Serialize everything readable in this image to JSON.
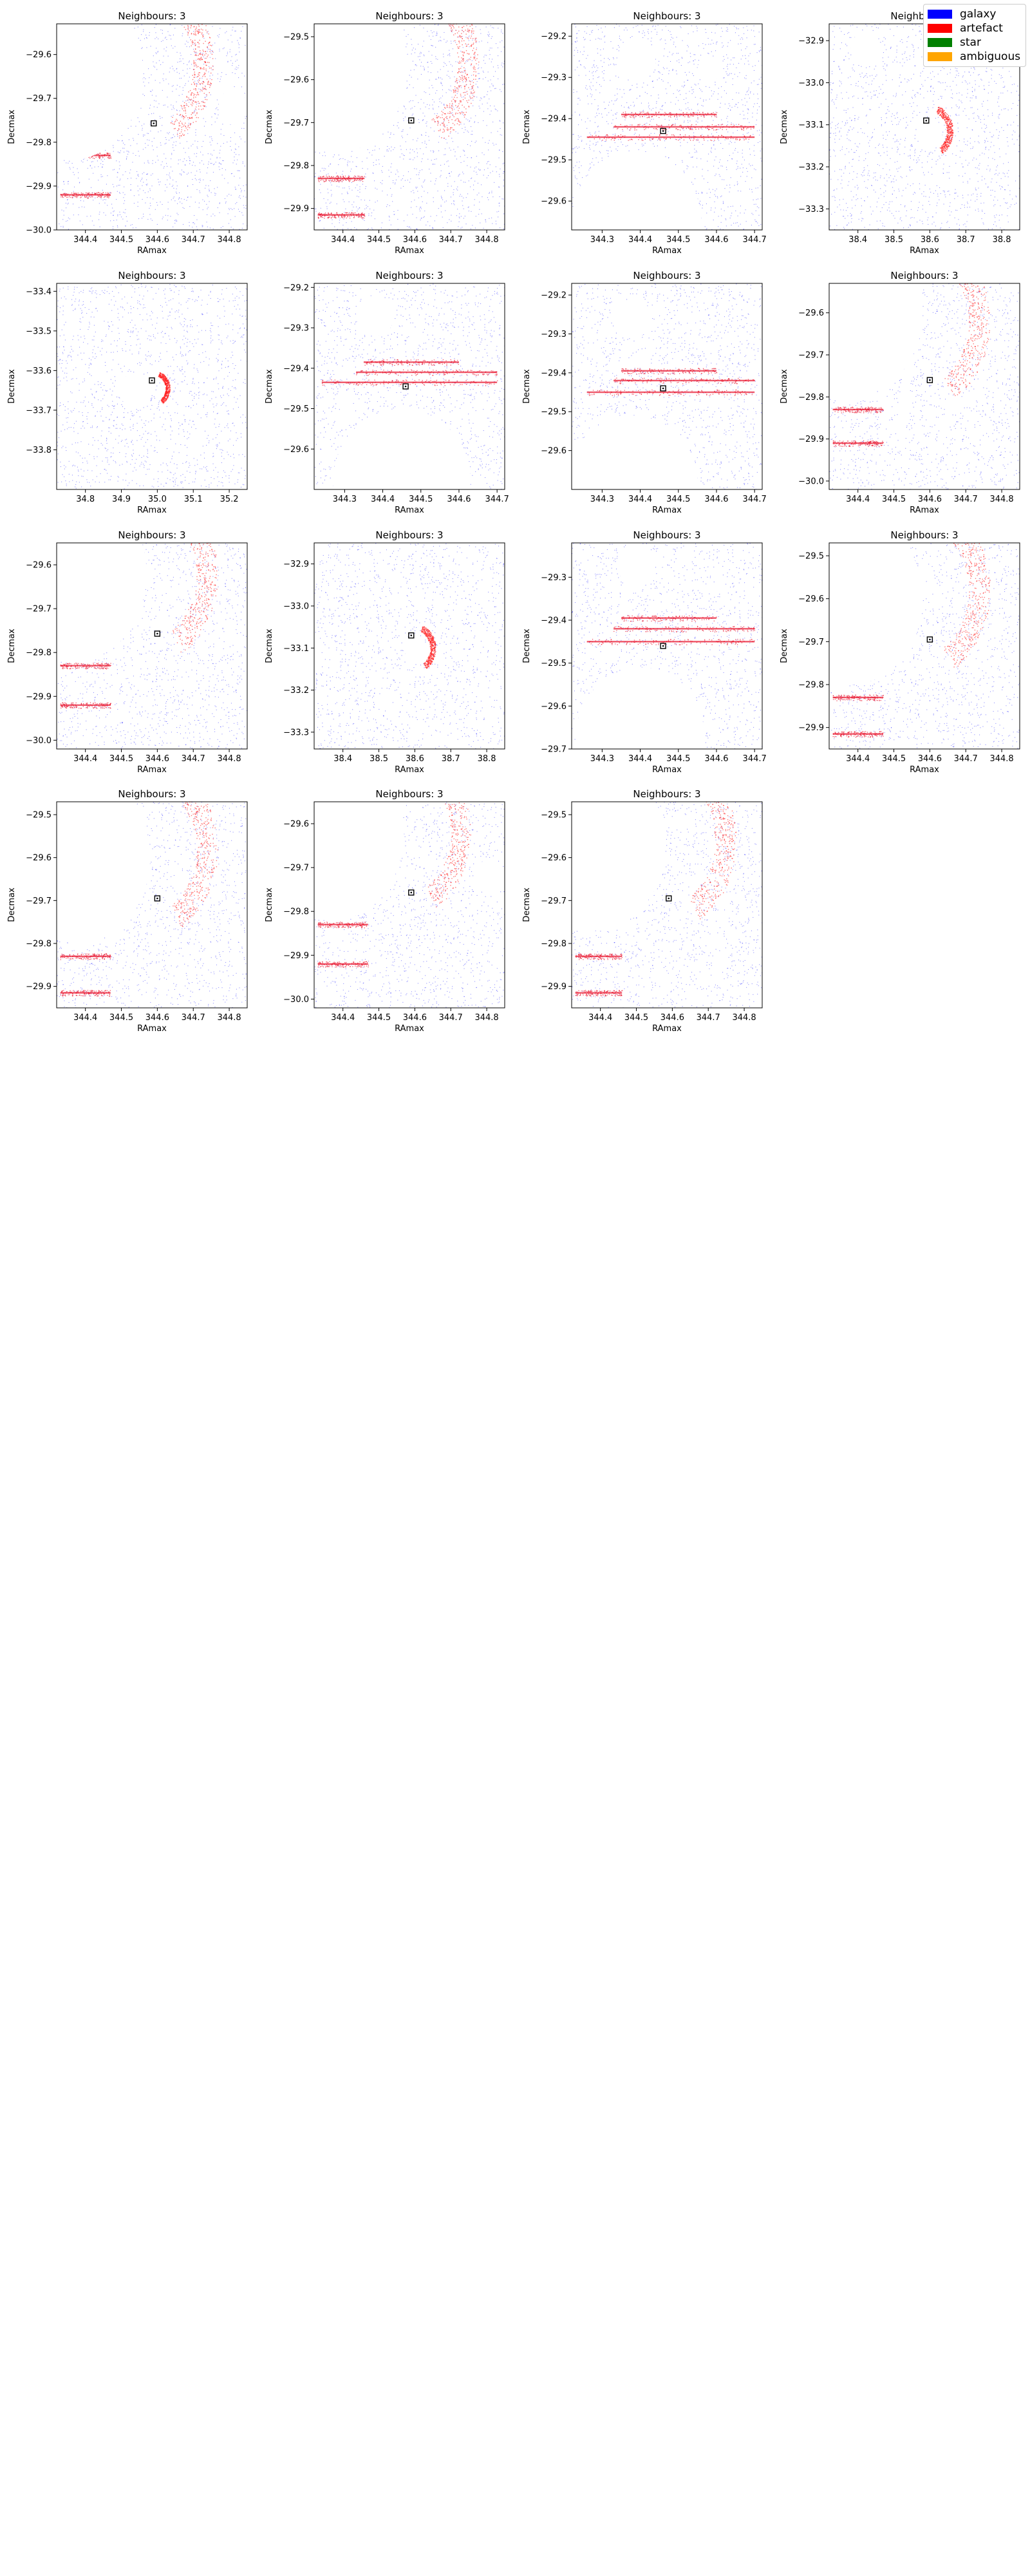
{
  "figure": {
    "panel_title": "Neighbours: 3",
    "xlabel": "RAmax",
    "ylabel": "Decmax"
  },
  "legend": {
    "items": [
      {
        "label": "galaxy",
        "color": "#0000ff"
      },
      {
        "label": "artefact",
        "color": "#ff0000"
      },
      {
        "label": "star",
        "color": "#008000"
      },
      {
        "label": "ambiguous",
        "color": "#ffa500"
      }
    ]
  },
  "chart_data": [
    {
      "type": "scatter",
      "title": "Neighbours: 3",
      "xlabel": "RAmax",
      "ylabel": "Decmax",
      "xlim": [
        344.32,
        344.85
      ],
      "ylim": [
        -30.0,
        -29.53
      ],
      "xticks": [
        344.4,
        344.5,
        344.6,
        344.7,
        344.8
      ],
      "yticks": [
        -30.0,
        -29.9,
        -29.8,
        -29.7,
        -29.6
      ],
      "marker": [
        344.59,
        -29.757
      ],
      "holes": [
        {
          "x": 344.36,
          "y": -29.64,
          "r": 0.2
        },
        {
          "x": 344.81,
          "y": -29.72,
          "r": 0.04
        }
      ],
      "streaks": [
        {
          "x0": 344.33,
          "x1": 344.47,
          "y": -29.92
        },
        {
          "x0": 344.33,
          "x1": 344.47,
          "y": -29.83
        }
      ],
      "arc": {
        "x": 344.55,
        "y": -29.62,
        "r": 0.16
      }
    },
    {
      "type": "scatter",
      "title": "Neighbours: 3",
      "xlabel": "RAmax",
      "ylabel": "Decmax",
      "xlim": [
        344.32,
        344.85
      ],
      "ylim": [
        -29.95,
        -29.47
      ],
      "xticks": [
        344.4,
        344.5,
        344.6,
        344.7,
        344.8
      ],
      "yticks": [
        -29.9,
        -29.8,
        -29.7,
        -29.6,
        -29.5
      ],
      "marker": [
        344.59,
        -29.695
      ],
      "holes": [
        {
          "x": 344.38,
          "y": -29.57,
          "r": 0.2
        }
      ],
      "streaks": [
        {
          "x0": 344.33,
          "x1": 344.46,
          "y": -29.915
        },
        {
          "x0": 344.33,
          "x1": 344.46,
          "y": -29.83
        }
      ],
      "arc": {
        "x": 344.56,
        "y": -29.56,
        "r": 0.17
      }
    },
    {
      "type": "scatter",
      "title": "Neighbours: 3",
      "xlabel": "RAmax",
      "ylabel": "Decmax",
      "xlim": [
        344.22,
        344.72
      ],
      "ylim": [
        -29.67,
        -29.17
      ],
      "xticks": [
        344.3,
        344.4,
        344.5,
        344.6,
        344.7
      ],
      "yticks": [
        -29.6,
        -29.5,
        -29.4,
        -29.3,
        -29.2
      ],
      "marker": [
        344.46,
        -29.43
      ],
      "holes": [
        {
          "x": 344.39,
          "y": -29.65,
          "r": 0.17
        },
        {
          "x": 344.39,
          "y": -29.26,
          "r": 0.05
        },
        {
          "x": 344.58,
          "y": -29.28,
          "r": 0.03
        }
      ],
      "streaks": [
        {
          "x0": 344.26,
          "x1": 344.7,
          "y": -29.445
        },
        {
          "x0": 344.33,
          "x1": 344.7,
          "y": -29.42
        },
        {
          "x0": 344.35,
          "x1": 344.6,
          "y": -29.39
        }
      ],
      "arc": null
    },
    {
      "type": "scatter",
      "title": "Neighbours: 3",
      "xlabel": "RAmax",
      "ylabel": "Decmax",
      "xlim": [
        38.32,
        38.85
      ],
      "ylim": [
        -33.35,
        -32.86
      ],
      "xticks": [
        38.4,
        38.5,
        38.6,
        38.7,
        38.8
      ],
      "yticks": [
        -33.3,
        -33.2,
        -33.1,
        -33.0,
        -32.9
      ],
      "marker": [
        38.59,
        -33.09
      ],
      "holes": [
        {
          "x": 38.6,
          "y": -33.12,
          "r": 0.035
        },
        {
          "x": 38.42,
          "y": -32.92,
          "r": 0.04
        }
      ],
      "streaks": [],
      "arc": {
        "x": 38.6,
        "y": -33.115,
        "r": 0.05
      }
    },
    {
      "type": "scatter",
      "title": "Neighbours: 3",
      "xlabel": "RAmax",
      "ylabel": "Decmax",
      "xlim": [
        34.72,
        35.25
      ],
      "ylim": [
        -33.9,
        -33.38
      ],
      "xticks": [
        34.8,
        34.9,
        35.0,
        35.1,
        35.2
      ],
      "yticks": [
        -33.8,
        -33.7,
        -33.6,
        -33.5,
        -33.4
      ],
      "marker": [
        34.985,
        -33.625
      ],
      "holes": [
        {
          "x": 34.94,
          "y": -33.65,
          "r": 0.045
        }
      ],
      "streaks": [],
      "arc": {
        "x": 34.99,
        "y": -33.645,
        "r": 0.035
      }
    },
    {
      "type": "scatter",
      "title": "Neighbours: 3",
      "xlabel": "RAmax",
      "ylabel": "Decmax",
      "xlim": [
        344.22,
        344.72
      ],
      "ylim": [
        -29.7,
        -29.19
      ],
      "xticks": [
        344.3,
        344.4,
        344.5,
        344.6,
        344.7
      ],
      "yticks": [
        -29.6,
        -29.5,
        -29.4,
        -29.3,
        -29.2
      ],
      "marker": [
        344.46,
        -29.445
      ],
      "holes": [
        {
          "x": 344.45,
          "y": -29.68,
          "r": 0.18
        },
        {
          "x": 344.38,
          "y": -29.27,
          "r": 0.05
        }
      ],
      "streaks": [
        {
          "x0": 344.24,
          "x1": 344.7,
          "y": -29.435
        },
        {
          "x0": 344.33,
          "x1": 344.7,
          "y": -29.41
        },
        {
          "x0": 344.35,
          "x1": 344.6,
          "y": -29.385
        }
      ],
      "arc": null
    },
    {
      "type": "scatter",
      "title": "Neighbours: 3",
      "xlabel": "RAmax",
      "ylabel": "Decmax",
      "xlim": [
        344.22,
        344.72
      ],
      "ylim": [
        -29.7,
        -29.17
      ],
      "xticks": [
        344.3,
        344.4,
        344.5,
        344.6,
        344.7
      ],
      "yticks": [
        -29.6,
        -29.5,
        -29.4,
        -29.3,
        -29.2
      ],
      "marker": [
        344.46,
        -29.44
      ],
      "holes": [
        {
          "x": 344.38,
          "y": -29.68,
          "r": 0.17
        },
        {
          "x": 344.38,
          "y": -29.26,
          "r": 0.05
        }
      ],
      "streaks": [
        {
          "x0": 344.26,
          "x1": 344.7,
          "y": -29.45
        },
        {
          "x0": 344.33,
          "x1": 344.7,
          "y": -29.42
        },
        {
          "x0": 344.35,
          "x1": 344.6,
          "y": -29.395
        }
      ],
      "arc": null
    },
    {
      "type": "scatter",
      "title": "Neighbours: 3",
      "xlabel": "RAmax",
      "ylabel": "Decmax",
      "xlim": [
        344.32,
        344.85
      ],
      "ylim": [
        -30.02,
        -29.53
      ],
      "xticks": [
        344.4,
        344.5,
        344.6,
        344.7,
        344.8
      ],
      "yticks": [
        -30.0,
        -29.9,
        -29.8,
        -29.7,
        -29.6
      ],
      "marker": [
        344.6,
        -29.76
      ],
      "holes": [
        {
          "x": 344.38,
          "y": -29.6,
          "r": 0.2
        }
      ],
      "streaks": [
        {
          "x0": 344.33,
          "x1": 344.47,
          "y": -29.91
        },
        {
          "x0": 344.33,
          "x1": 344.47,
          "y": -29.83
        }
      ],
      "arc": {
        "x": 344.55,
        "y": -29.62,
        "r": 0.17
      }
    },
    {
      "type": "scatter",
      "title": "Neighbours: 3",
      "xlabel": "RAmax",
      "ylabel": "Decmax",
      "xlim": [
        344.32,
        344.85
      ],
      "ylim": [
        -30.02,
        -29.55
      ],
      "xticks": [
        344.4,
        344.5,
        344.6,
        344.7,
        344.8
      ],
      "yticks": [
        -30.0,
        -29.9,
        -29.8,
        -29.7,
        -29.6
      ],
      "marker": [
        344.6,
        -29.757
      ],
      "holes": [
        {
          "x": 344.37,
          "y": -29.62,
          "r": 0.2
        }
      ],
      "streaks": [
        {
          "x0": 344.33,
          "x1": 344.47,
          "y": -29.92
        },
        {
          "x0": 344.33,
          "x1": 344.47,
          "y": -29.83
        }
      ],
      "arc": {
        "x": 344.55,
        "y": -29.62,
        "r": 0.17
      }
    },
    {
      "type": "scatter",
      "title": "Neighbours: 3",
      "xlabel": "RAmax",
      "ylabel": "Decmax",
      "xlim": [
        38.32,
        38.85
      ],
      "ylim": [
        -33.34,
        -32.85
      ],
      "xticks": [
        38.4,
        38.5,
        38.6,
        38.7,
        38.8
      ],
      "yticks": [
        -33.3,
        -33.2,
        -33.1,
        -33.0,
        -32.9
      ],
      "marker": [
        38.59,
        -33.07
      ],
      "holes": [
        {
          "x": 38.6,
          "y": -33.1,
          "r": 0.03
        }
      ],
      "streaks": [],
      "arc": {
        "x": 38.6,
        "y": -33.1,
        "r": 0.045
      }
    },
    {
      "type": "scatter",
      "title": "Neighbours: 3",
      "xlabel": "RAmax",
      "ylabel": "Decmax",
      "xlim": [
        344.22,
        344.72
      ],
      "ylim": [
        -29.7,
        -29.22
      ],
      "xticks": [
        344.3,
        344.4,
        344.5,
        344.6,
        344.7
      ],
      "yticks": [
        -29.7,
        -29.6,
        -29.5,
        -29.4,
        -29.3
      ],
      "marker": [
        344.46,
        -29.46
      ],
      "holes": [
        {
          "x": 344.4,
          "y": -29.68,
          "r": 0.17
        },
        {
          "x": 344.39,
          "y": -29.27,
          "r": 0.05
        }
      ],
      "streaks": [
        {
          "x0": 344.26,
          "x1": 344.7,
          "y": -29.45
        },
        {
          "x0": 344.33,
          "x1": 344.7,
          "y": -29.42
        },
        {
          "x0": 344.35,
          "x1": 344.6,
          "y": -29.395
        }
      ],
      "arc": null
    },
    {
      "type": "scatter",
      "title": "Neighbours: 3",
      "xlabel": "RAmax",
      "ylabel": "Decmax",
      "xlim": [
        344.32,
        344.85
      ],
      "ylim": [
        -29.95,
        -29.47
      ],
      "xticks": [
        344.4,
        344.5,
        344.6,
        344.7,
        344.8
      ],
      "yticks": [
        -29.9,
        -29.8,
        -29.7,
        -29.6,
        -29.5
      ],
      "marker": [
        344.6,
        -29.695
      ],
      "holes": [
        {
          "x": 344.38,
          "y": -29.6,
          "r": 0.2
        }
      ],
      "streaks": [
        {
          "x0": 344.33,
          "x1": 344.47,
          "y": -29.915
        },
        {
          "x0": 344.33,
          "x1": 344.47,
          "y": -29.83
        }
      ],
      "arc": {
        "x": 344.55,
        "y": -29.58,
        "r": 0.17
      }
    },
    {
      "type": "scatter",
      "title": "Neighbours: 3",
      "xlabel": "RAmax",
      "ylabel": "Decmax",
      "xlim": [
        344.32,
        344.85
      ],
      "ylim": [
        -29.95,
        -29.47
      ],
      "xticks": [
        344.4,
        344.5,
        344.6,
        344.7,
        344.8
      ],
      "yticks": [
        -29.9,
        -29.8,
        -29.7,
        -29.6,
        -29.5
      ],
      "marker": [
        344.6,
        -29.695
      ],
      "holes": [
        {
          "x": 344.38,
          "y": -29.6,
          "r": 0.2
        }
      ],
      "streaks": [
        {
          "x0": 344.33,
          "x1": 344.47,
          "y": -29.915
        },
        {
          "x0": 344.33,
          "x1": 344.47,
          "y": -29.83
        }
      ],
      "arc": {
        "x": 344.55,
        "y": -29.58,
        "r": 0.17
      }
    },
    {
      "type": "scatter",
      "title": "Neighbours: 3",
      "xlabel": "RAmax",
      "ylabel": "Decmax",
      "xlim": [
        344.32,
        344.85
      ],
      "ylim": [
        -30.02,
        -29.55
      ],
      "xticks": [
        344.4,
        344.5,
        344.6,
        344.7,
        344.8
      ],
      "yticks": [
        -30.0,
        -29.9,
        -29.8,
        -29.7,
        -29.6
      ],
      "marker": [
        344.59,
        -29.757
      ],
      "holes": [
        {
          "x": 344.37,
          "y": -29.62,
          "r": 0.2
        },
        {
          "x": 344.81,
          "y": -29.72,
          "r": 0.04
        }
      ],
      "streaks": [
        {
          "x0": 344.33,
          "x1": 344.47,
          "y": -29.92
        },
        {
          "x0": 344.33,
          "x1": 344.47,
          "y": -29.83
        }
      ],
      "arc": {
        "x": 344.55,
        "y": -29.62,
        "r": 0.16
      }
    },
    {
      "type": "scatter",
      "title": "Neighbours: 3",
      "xlabel": "RAmax",
      "ylabel": "Decmax",
      "xlim": [
        344.32,
        344.85
      ],
      "ylim": [
        -29.95,
        -29.47
      ],
      "xticks": [
        344.4,
        344.5,
        344.6,
        344.7,
        344.8
      ],
      "yticks": [
        -29.9,
        -29.8,
        -29.7,
        -29.6,
        -29.5
      ],
      "marker": [
        344.59,
        -29.695
      ],
      "holes": [
        {
          "x": 344.38,
          "y": -29.57,
          "r": 0.2
        }
      ],
      "streaks": [
        {
          "x0": 344.33,
          "x1": 344.46,
          "y": -29.915
        },
        {
          "x0": 344.33,
          "x1": 344.46,
          "y": -29.83
        }
      ],
      "arc": {
        "x": 344.56,
        "y": -29.56,
        "r": 0.17
      }
    }
  ]
}
